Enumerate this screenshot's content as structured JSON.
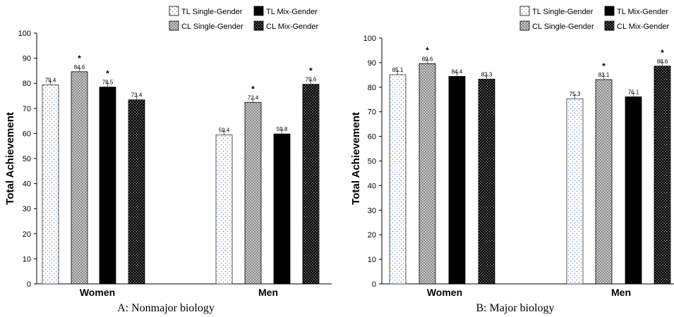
{
  "chart_data": [
    {
      "type": "bar",
      "caption": "A: Nonmajor biology",
      "ylabel": "Total Achievement",
      "ylim": [
        0,
        100
      ],
      "yticks": [
        0,
        10,
        20,
        30,
        40,
        50,
        60,
        70,
        80,
        90,
        100
      ],
      "categories": [
        "Women",
        "Men"
      ],
      "series": [
        {
          "name": "TL  Single-Gender",
          "values": [
            79.4,
            59.4
          ],
          "value_labels": [
            "79.4",
            "59.4"
          ],
          "significant": [
            false,
            false
          ]
        },
        {
          "name": "CL  Single-Gender",
          "values": [
            84.6,
            72.4
          ],
          "value_labels": [
            "84.6",
            "72.4"
          ],
          "significant": [
            true,
            true
          ]
        },
        {
          "name": "TL  Mix-Gender",
          "values": [
            78.5,
            59.8
          ],
          "value_labels": [
            "78.5",
            "59.8"
          ],
          "significant": [
            true,
            false
          ]
        },
        {
          "name": "CL  Mix-Gender",
          "values": [
            73.4,
            79.6
          ],
          "value_labels": [
            "73.4",
            "79.6"
          ],
          "significant": [
            false,
            true
          ]
        }
      ],
      "significance_marker": "*",
      "legend_position": "top-right",
      "grid": false
    },
    {
      "type": "bar",
      "caption": "B: Major biology",
      "ylabel": "Total Achievement",
      "ylim": [
        0,
        100
      ],
      "yticks": [
        0,
        10,
        20,
        30,
        40,
        50,
        60,
        70,
        80,
        90,
        100
      ],
      "categories": [
        "Women",
        "Men"
      ],
      "series": [
        {
          "name": "TL  Single-Gender",
          "values": [
            85.1,
            75.3
          ],
          "value_labels": [
            "85.1",
            "75.3"
          ],
          "significant": [
            false,
            false
          ]
        },
        {
          "name": "CL  Single-Gender",
          "values": [
            89.6,
            83.1
          ],
          "value_labels": [
            "89.6",
            "83.1"
          ],
          "significant": [
            true,
            true
          ]
        },
        {
          "name": "TL  Mix-Gender",
          "values": [
            84.4,
            76.1
          ],
          "value_labels": [
            "84.4",
            "76.1"
          ],
          "significant": [
            false,
            false
          ]
        },
        {
          "name": "CL  Mix-Gender",
          "values": [
            83.3,
            88.6
          ],
          "value_labels": [
            "83.3",
            "88.6"
          ],
          "significant": [
            false,
            true
          ]
        }
      ],
      "significance_marker": "*",
      "legend_position": "top-right",
      "grid": false
    }
  ],
  "series_styles": [
    {
      "fill": "#ffffff",
      "pattern": "sparse-dots",
      "dot_color": "#6f8fb8"
    },
    {
      "fill": "#b5b5b5",
      "pattern": "checker",
      "dot_color": "#ffffff"
    },
    {
      "fill": "#000000",
      "pattern": "solid",
      "dot_color": "#000000"
    },
    {
      "fill": "#000000",
      "pattern": "dense-dots",
      "dot_color": "#ffffff"
    }
  ]
}
